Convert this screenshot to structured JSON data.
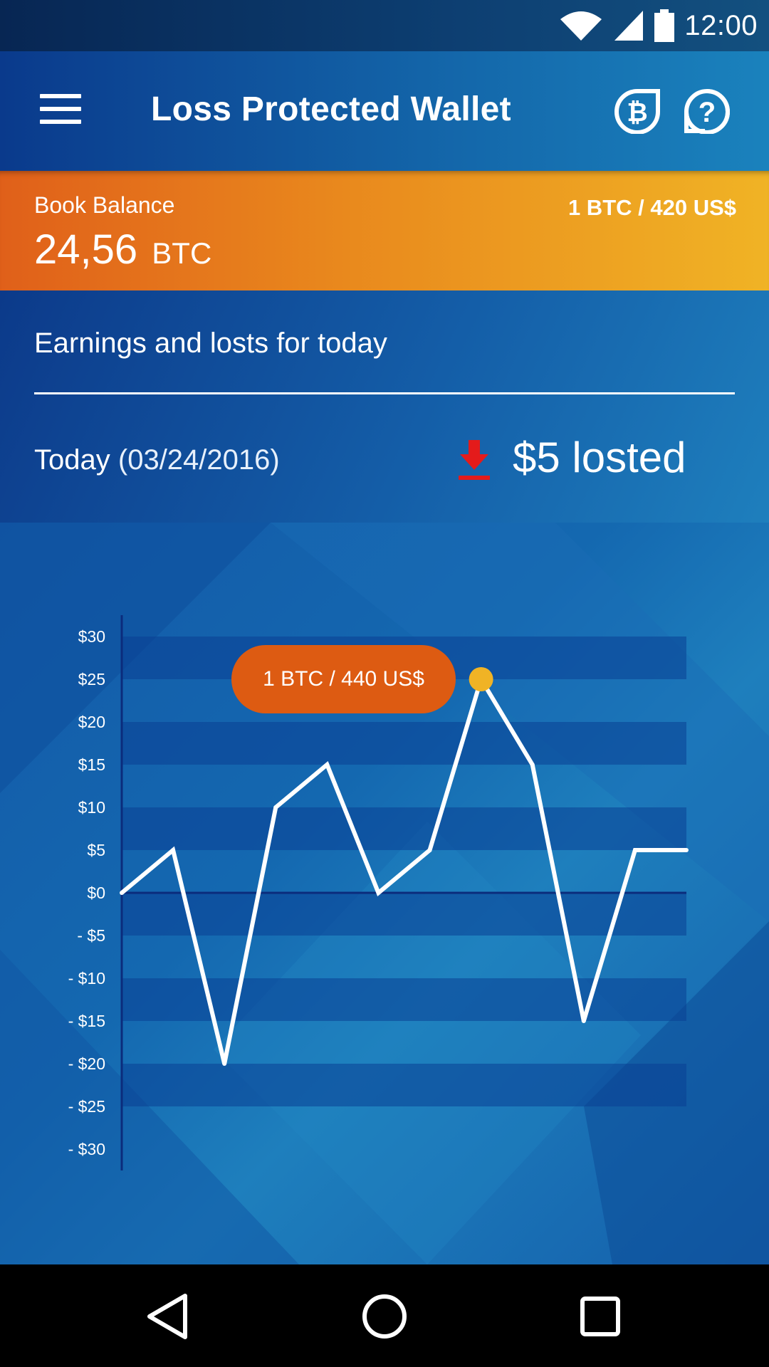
{
  "status_bar": {
    "time": "12:00",
    "icons": [
      "wifi-icon",
      "signal-icon",
      "battery-icon"
    ]
  },
  "app_bar": {
    "title": "Loss Protected Wallet",
    "icons": [
      "menu-icon",
      "bitcoin-icon",
      "help-icon"
    ]
  },
  "balance": {
    "label": "Book Balance",
    "amount": "24,56",
    "unit": "BTC",
    "rate": "1 BTC / 420 US$"
  },
  "earnings": {
    "title": "Earnings and losts for today",
    "today_label": "Today",
    "today_date": "(03/24/2016)",
    "loss_text": "$5 losted",
    "loss_icon": "download-arrow-icon",
    "loss_color": "#e41b1b"
  },
  "colors": {
    "accent_orange": "#dd5b12",
    "marker_yellow": "#f0b325"
  },
  "chart_data": {
    "type": "line",
    "yticks": [
      "$30",
      "$25",
      "$20",
      "$15",
      "$10",
      "$5",
      "$0",
      "- $5",
      "- $10",
      "- $15",
      "- $20",
      "- $25",
      "- $30"
    ],
    "ylim": [
      -30,
      30
    ],
    "series": [
      {
        "values": [
          0,
          5,
          -20,
          10,
          15,
          0,
          5,
          25,
          15,
          -15,
          5,
          5
        ]
      }
    ],
    "highlight": {
      "index": 7,
      "label": "1 BTC / 440 US$"
    },
    "grid": true
  },
  "nav_bar": {
    "buttons": [
      "back-icon",
      "home-icon",
      "recents-icon"
    ]
  }
}
